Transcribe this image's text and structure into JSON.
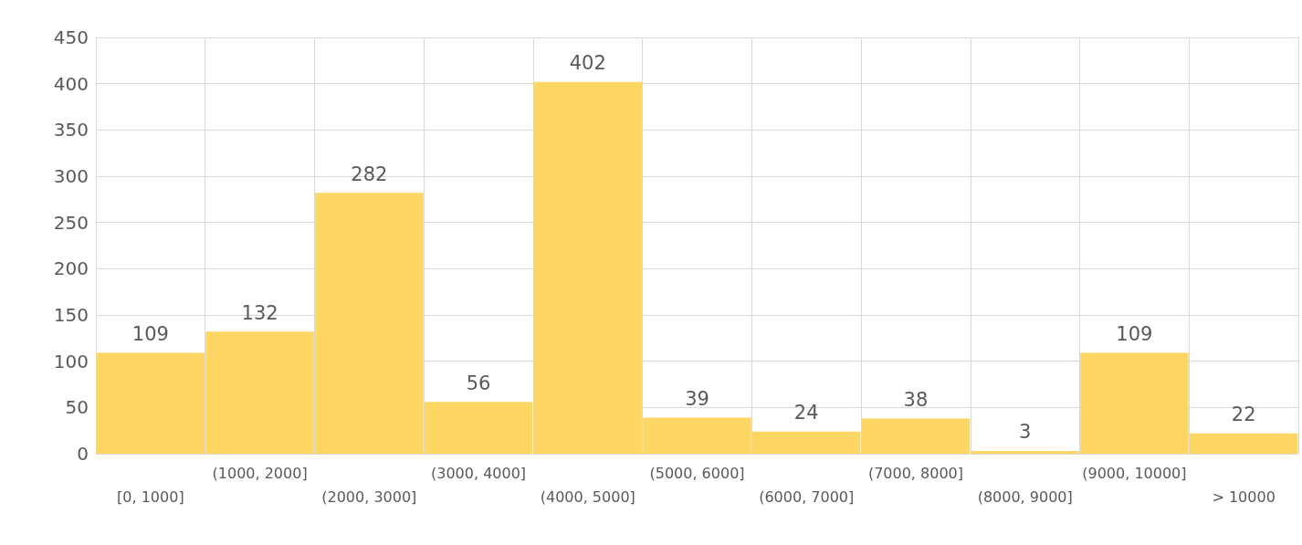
{
  "chart_data": {
    "type": "bar",
    "categories": [
      "[0, 1000]",
      "(1000, 2000]",
      "(2000, 3000]",
      "(3000, 4000]",
      "(4000, 5000]",
      "(5000, 6000]",
      "(6000, 7000]",
      "(7000, 8000]",
      "(8000, 9000]",
      "(9000, 10000]",
      "> 10000"
    ],
    "values": [
      109,
      132,
      282,
      56,
      402,
      39,
      24,
      38,
      3,
      109,
      22
    ],
    "color": "#fdd663",
    "ylim": [
      0,
      450
    ],
    "yticks": [
      0,
      50,
      100,
      150,
      200,
      250,
      300,
      350,
      400,
      450
    ],
    "grid": true,
    "data_labels": true
  }
}
